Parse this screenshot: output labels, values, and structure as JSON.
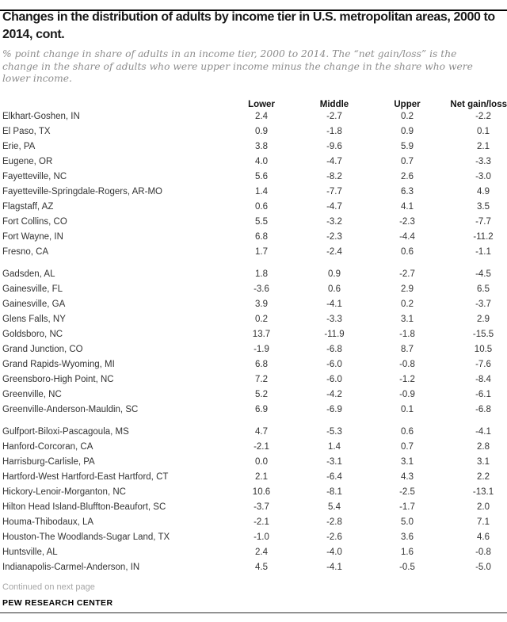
{
  "header": {
    "title": "Changes in the distribution of adults by income tier in U.S. metropolitan areas, 2000 to 2014, cont.",
    "subtitle": "% point change in share of adults in an income tier, 2000 to 2014. The “net gain/loss” is the change in the share of adults who were upper income minus the change in the share who were lower income."
  },
  "table": {
    "columns": [
      "Lower",
      "Middle",
      "Upper",
      "Net gain/loss"
    ],
    "groups": [
      {
        "rows": [
          {
            "name": "Elkhart-Goshen, IN",
            "lower": "2.4",
            "middle": "-2.7",
            "upper": "0.2",
            "net": "-2.2"
          },
          {
            "name": "El Paso, TX",
            "lower": "0.9",
            "middle": "-1.8",
            "upper": "0.9",
            "net": "0.1"
          },
          {
            "name": "Erie, PA",
            "lower": "3.8",
            "middle": "-9.6",
            "upper": "5.9",
            "net": "2.1"
          },
          {
            "name": "Eugene, OR",
            "lower": "4.0",
            "middle": "-4.7",
            "upper": "0.7",
            "net": "-3.3"
          },
          {
            "name": "Fayetteville, NC",
            "lower": "5.6",
            "middle": "-8.2",
            "upper": "2.6",
            "net": "-3.0"
          },
          {
            "name": "Fayetteville-Springdale-Rogers, AR-MO",
            "lower": "1.4",
            "middle": "-7.7",
            "upper": "6.3",
            "net": "4.9"
          },
          {
            "name": "Flagstaff, AZ",
            "lower": "0.6",
            "middle": "-4.7",
            "upper": "4.1",
            "net": "3.5"
          },
          {
            "name": "Fort Collins, CO",
            "lower": "5.5",
            "middle": "-3.2",
            "upper": "-2.3",
            "net": "-7.7"
          },
          {
            "name": "Fort Wayne, IN",
            "lower": "6.8",
            "middle": "-2.3",
            "upper": "-4.4",
            "net": "-11.2"
          },
          {
            "name": "Fresno, CA",
            "lower": "1.7",
            "middle": "-2.4",
            "upper": "0.6",
            "net": "-1.1"
          }
        ]
      },
      {
        "rows": [
          {
            "name": "Gadsden, AL",
            "lower": "1.8",
            "middle": "0.9",
            "upper": "-2.7",
            "net": "-4.5"
          },
          {
            "name": "Gainesville, FL",
            "lower": "-3.6",
            "middle": "0.6",
            "upper": "2.9",
            "net": "6.5"
          },
          {
            "name": "Gainesville, GA",
            "lower": "3.9",
            "middle": "-4.1",
            "upper": "0.2",
            "net": "-3.7"
          },
          {
            "name": "Glens Falls, NY",
            "lower": "0.2",
            "middle": "-3.3",
            "upper": "3.1",
            "net": "2.9"
          },
          {
            "name": "Goldsboro, NC",
            "lower": "13.7",
            "middle": "-11.9",
            "upper": "-1.8",
            "net": "-15.5"
          },
          {
            "name": "Grand Junction, CO",
            "lower": "-1.9",
            "middle": "-6.8",
            "upper": "8.7",
            "net": "10.5"
          },
          {
            "name": "Grand Rapids-Wyoming, MI",
            "lower": "6.8",
            "middle": "-6.0",
            "upper": "-0.8",
            "net": "-7.6"
          },
          {
            "name": "Greensboro-High Point, NC",
            "lower": "7.2",
            "middle": "-6.0",
            "upper": "-1.2",
            "net": "-8.4"
          },
          {
            "name": "Greenville, NC",
            "lower": "5.2",
            "middle": "-4.2",
            "upper": "-0.9",
            "net": "-6.1"
          },
          {
            "name": "Greenville-Anderson-Mauldin, SC",
            "lower": "6.9",
            "middle": "-6.9",
            "upper": "0.1",
            "net": "-6.8"
          }
        ]
      },
      {
        "rows": [
          {
            "name": "Gulfport-Biloxi-Pascagoula, MS",
            "lower": "4.7",
            "middle": "-5.3",
            "upper": "0.6",
            "net": "-4.1"
          },
          {
            "name": "Hanford-Corcoran, CA",
            "lower": "-2.1",
            "middle": "1.4",
            "upper": "0.7",
            "net": "2.8"
          },
          {
            "name": "Harrisburg-Carlisle, PA",
            "lower": "0.0",
            "middle": "-3.1",
            "upper": "3.1",
            "net": "3.1"
          },
          {
            "name": "Hartford-West Hartford-East Hartford, CT",
            "lower": "2.1",
            "middle": "-6.4",
            "upper": "4.3",
            "net": "2.2"
          },
          {
            "name": "Hickory-Lenoir-Morganton, NC",
            "lower": "10.6",
            "middle": "-8.1",
            "upper": "-2.5",
            "net": "-13.1"
          },
          {
            "name": "Hilton Head Island-Bluffton-Beaufort, SC",
            "lower": "-3.7",
            "middle": "5.4",
            "upper": "-1.7",
            "net": "2.0"
          },
          {
            "name": "Houma-Thibodaux, LA",
            "lower": "-2.1",
            "middle": "-2.8",
            "upper": "5.0",
            "net": "7.1"
          },
          {
            "name": "Houston-The Woodlands-Sugar Land, TX",
            "lower": "-1.0",
            "middle": "-2.6",
            "upper": "3.6",
            "net": "4.6"
          },
          {
            "name": "Huntsville, AL",
            "lower": "2.4",
            "middle": "-4.0",
            "upper": "1.6",
            "net": "-0.8"
          },
          {
            "name": "Indianapolis-Carmel-Anderson, IN",
            "lower": "4.5",
            "middle": "-4.1",
            "upper": "-0.5",
            "net": "-5.0"
          }
        ]
      }
    ]
  },
  "footer": {
    "continued": "Continued on next page",
    "source": "PEW RESEARCH CENTER"
  }
}
